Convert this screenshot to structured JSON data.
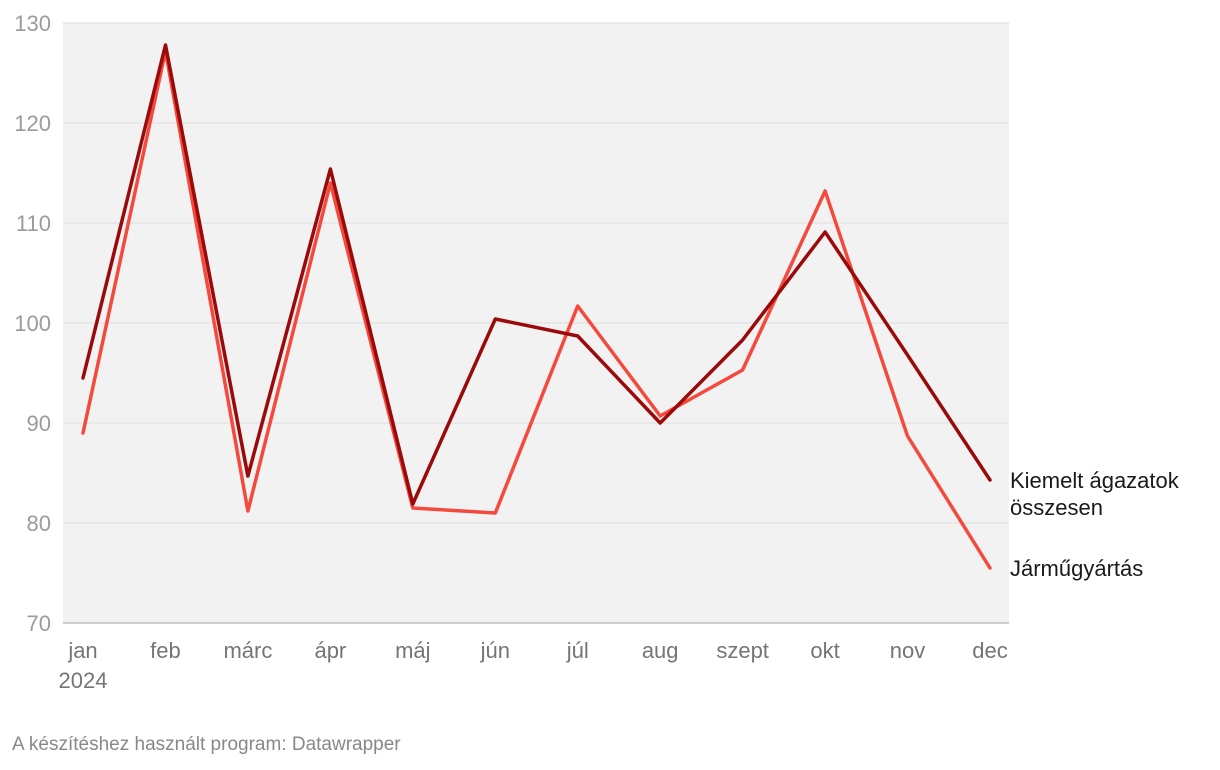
{
  "chart_data": {
    "type": "line",
    "categories": [
      "jan",
      "feb",
      "márc",
      "ápr",
      "máj",
      "jún",
      "júl",
      "aug",
      "szept",
      "okt",
      "nov",
      "dec"
    ],
    "year_label": "2024",
    "ylim": [
      70,
      130
    ],
    "yticks": [
      70,
      80,
      90,
      100,
      110,
      120,
      130
    ],
    "grid": true,
    "series": [
      {
        "name": "Járműgyártás",
        "label_lines": [
          "Járműgyártás"
        ],
        "color": "#f44a3e",
        "values": [
          89.0,
          127.2,
          81.2,
          114.0,
          81.5,
          81.0,
          101.7,
          90.7,
          95.3,
          113.2,
          88.7,
          75.5
        ]
      },
      {
        "name": "Kiemelt ágazatok összesen",
        "label_lines": [
          "Kiemelt ágazatok",
          "összesen"
        ],
        "color": "#9b0a0a",
        "values": [
          94.5,
          127.8,
          84.7,
          115.4,
          81.9,
          100.4,
          98.7,
          90.0,
          98.3,
          109.1,
          96.8,
          84.3
        ]
      }
    ]
  },
  "footer": {
    "credit": "A készítéshez használt program: Datawrapper"
  }
}
